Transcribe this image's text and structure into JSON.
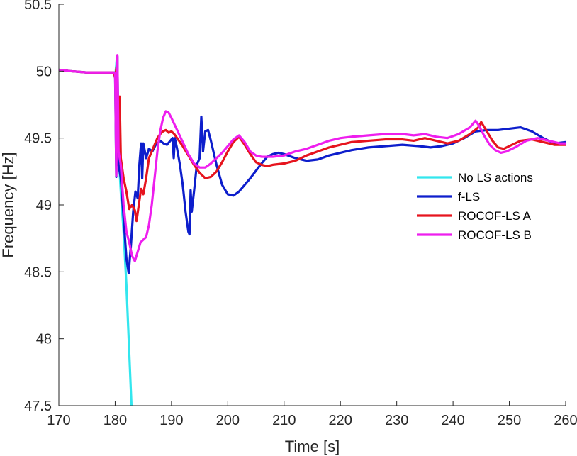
{
  "chart_data": {
    "type": "line",
    "xlabel": "Time [s]",
    "ylabel": "Frequency [Hz]",
    "xlim": [
      170,
      260
    ],
    "ylim": [
      47.5,
      50.5
    ],
    "xticks": [
      170,
      180,
      190,
      200,
      210,
      220,
      230,
      240,
      250,
      260
    ],
    "yticks": [
      47.5,
      48,
      48.5,
      49,
      49.5,
      50,
      50.5
    ],
    "ytick_labels": [
      "47.5",
      "48",
      "48.5",
      "49",
      "49.5",
      "50",
      "50.5"
    ],
    "grid": false,
    "legend_position": "right",
    "series": [
      {
        "name": "No LS actions",
        "color": "#33E6EE",
        "points": [
          [
            170,
            50.01
          ],
          [
            172,
            50.0
          ],
          [
            175,
            49.99
          ],
          [
            178,
            49.99
          ],
          [
            179.8,
            49.99
          ],
          [
            180.0,
            49.95
          ],
          [
            180.3,
            50.1
          ],
          [
            180.6,
            49.4
          ],
          [
            181.0,
            49.1
          ],
          [
            181.5,
            48.8
          ],
          [
            182.0,
            48.4
          ],
          [
            182.5,
            47.9
          ],
          [
            182.9,
            47.5
          ]
        ]
      },
      {
        "name": "f-LS",
        "color": "#0D1ECC",
        "points": [
          [
            170,
            50.01
          ],
          [
            172,
            50.0
          ],
          [
            175,
            49.99
          ],
          [
            178,
            49.99
          ],
          [
            179.8,
            49.99
          ],
          [
            180.0,
            49.95
          ],
          [
            180.2,
            49.21
          ],
          [
            180.4,
            50.11
          ],
          [
            180.6,
            49.3
          ],
          [
            181.0,
            49.2
          ],
          [
            181.5,
            48.9
          ],
          [
            182.0,
            48.6
          ],
          [
            182.4,
            48.49
          ],
          [
            182.8,
            48.7
          ],
          [
            183.2,
            48.95
          ],
          [
            183.6,
            49.1
          ],
          [
            184.0,
            49.05
          ],
          [
            184.3,
            49.3
          ],
          [
            184.6,
            49.46
          ],
          [
            184.8,
            49.2
          ],
          [
            185.0,
            49.46
          ],
          [
            185.5,
            49.35
          ],
          [
            186.0,
            49.42
          ],
          [
            186.6,
            49.4
          ],
          [
            187.2,
            49.45
          ],
          [
            188.0,
            49.48
          ],
          [
            188.6,
            49.46
          ],
          [
            189.2,
            49.45
          ],
          [
            189.8,
            49.48
          ],
          [
            190.2,
            49.5
          ],
          [
            190.4,
            49.35
          ],
          [
            190.6,
            49.5
          ],
          [
            191.0,
            49.42
          ],
          [
            191.5,
            49.3
          ],
          [
            192.0,
            49.15
          ],
          [
            192.5,
            48.95
          ],
          [
            193.0,
            48.8
          ],
          [
            193.2,
            48.78
          ],
          [
            193.4,
            49.11
          ],
          [
            193.6,
            48.95
          ],
          [
            194.0,
            49.1
          ],
          [
            194.5,
            49.3
          ],
          [
            195.0,
            49.35
          ],
          [
            195.3,
            49.66
          ],
          [
            195.6,
            49.4
          ],
          [
            196.0,
            49.55
          ],
          [
            196.5,
            49.56
          ],
          [
            197.0,
            49.48
          ],
          [
            198.0,
            49.3
          ],
          [
            199.0,
            49.15
          ],
          [
            200.0,
            49.08
          ],
          [
            201.0,
            49.07
          ],
          [
            202.0,
            49.1
          ],
          [
            204.0,
            49.2
          ],
          [
            206.0,
            49.31
          ],
          [
            207.0,
            49.36
          ],
          [
            208.0,
            49.38
          ],
          [
            209.0,
            49.39
          ],
          [
            210.0,
            49.38
          ],
          [
            212.0,
            49.35
          ],
          [
            214.0,
            49.33
          ],
          [
            216.0,
            49.34
          ],
          [
            218.0,
            49.37
          ],
          [
            220.0,
            49.39
          ],
          [
            222.0,
            49.41
          ],
          [
            225.0,
            49.43
          ],
          [
            228.0,
            49.44
          ],
          [
            231.0,
            49.45
          ],
          [
            234.0,
            49.44
          ],
          [
            236.0,
            49.43
          ],
          [
            238.0,
            49.44
          ],
          [
            240.0,
            49.46
          ],
          [
            242.0,
            49.5
          ],
          [
            244.0,
            49.55
          ],
          [
            246.0,
            49.56
          ],
          [
            248.0,
            49.56
          ],
          [
            250.0,
            49.57
          ],
          [
            252.0,
            49.58
          ],
          [
            254.0,
            49.55
          ],
          [
            256.0,
            49.5
          ],
          [
            258.0,
            49.46
          ],
          [
            260.0,
            49.47
          ]
        ]
      },
      {
        "name": "ROCOF-LS A",
        "color": "#E6141E",
        "points": [
          [
            170,
            50.01
          ],
          [
            172,
            50.0
          ],
          [
            175,
            49.99
          ],
          [
            178,
            49.99
          ],
          [
            179.8,
            49.99
          ],
          [
            180.0,
            49.95
          ],
          [
            180.3,
            50.05
          ],
          [
            180.6,
            49.6
          ],
          [
            180.8,
            49.81
          ],
          [
            181.0,
            49.35
          ],
          [
            181.5,
            49.2
          ],
          [
            182.0,
            49.1
          ],
          [
            182.5,
            48.97
          ],
          [
            183.0,
            49.0
          ],
          [
            183.5,
            48.96
          ],
          [
            183.8,
            48.88
          ],
          [
            184.2,
            49.0
          ],
          [
            184.6,
            49.12
          ],
          [
            185.0,
            49.08
          ],
          [
            185.5,
            49.2
          ],
          [
            186.0,
            49.35
          ],
          [
            186.5,
            49.4
          ],
          [
            187.0,
            49.45
          ],
          [
            187.5,
            49.5
          ],
          [
            188.0,
            49.53
          ],
          [
            188.5,
            49.55
          ],
          [
            189.0,
            49.56
          ],
          [
            189.5,
            49.54
          ],
          [
            190.0,
            49.55
          ],
          [
            190.5,
            49.53
          ],
          [
            191.0,
            49.5
          ],
          [
            192.0,
            49.44
          ],
          [
            193.0,
            49.37
          ],
          [
            194.0,
            49.3
          ],
          [
            195.0,
            49.24
          ],
          [
            196.0,
            49.2
          ],
          [
            197.0,
            49.21
          ],
          [
            198.0,
            49.25
          ],
          [
            199.0,
            49.32
          ],
          [
            200.0,
            49.4
          ],
          [
            201.0,
            49.47
          ],
          [
            202.0,
            49.51
          ],
          [
            203.0,
            49.45
          ],
          [
            204.0,
            49.38
          ],
          [
            205.0,
            49.32
          ],
          [
            206.0,
            49.3
          ],
          [
            207.0,
            49.29
          ],
          [
            208.0,
            49.3
          ],
          [
            210.0,
            49.31
          ],
          [
            212.0,
            49.33
          ],
          [
            214.0,
            49.37
          ],
          [
            216.0,
            49.4
          ],
          [
            218.0,
            49.43
          ],
          [
            220.0,
            49.45
          ],
          [
            222.0,
            49.47
          ],
          [
            225.0,
            49.48
          ],
          [
            228.0,
            49.49
          ],
          [
            231.0,
            49.49
          ],
          [
            233.0,
            49.48
          ],
          [
            235.0,
            49.5
          ],
          [
            237.0,
            49.48
          ],
          [
            239.0,
            49.46
          ],
          [
            241.0,
            49.48
          ],
          [
            243.0,
            49.53
          ],
          [
            244.5,
            49.58
          ],
          [
            245.0,
            49.62
          ],
          [
            246.0,
            49.55
          ],
          [
            247.0,
            49.48
          ],
          [
            248.0,
            49.43
          ],
          [
            249.0,
            49.42
          ],
          [
            250.0,
            49.44
          ],
          [
            252.0,
            49.48
          ],
          [
            254.0,
            49.49
          ],
          [
            256.0,
            49.47
          ],
          [
            258.0,
            49.45
          ],
          [
            260.0,
            49.45
          ]
        ]
      },
      {
        "name": "ROCOF-LS B",
        "color": "#EE1EEE",
        "points": [
          [
            170,
            50.01
          ],
          [
            172,
            50.0
          ],
          [
            175,
            49.99
          ],
          [
            178,
            49.99
          ],
          [
            179.8,
            49.99
          ],
          [
            180.0,
            49.98
          ],
          [
            180.2,
            49.22
          ],
          [
            180.4,
            50.12
          ],
          [
            180.6,
            49.4
          ],
          [
            181.0,
            49.3
          ],
          [
            181.5,
            49.0
          ],
          [
            182.0,
            48.8
          ],
          [
            182.5,
            48.72
          ],
          [
            183.0,
            48.62
          ],
          [
            183.5,
            48.58
          ],
          [
            184.0,
            48.65
          ],
          [
            184.5,
            48.72
          ],
          [
            185.0,
            48.74
          ],
          [
            185.5,
            48.76
          ],
          [
            186.0,
            48.85
          ],
          [
            186.5,
            49.0
          ],
          [
            187.0,
            49.2
          ],
          [
            187.5,
            49.4
          ],
          [
            188.0,
            49.55
          ],
          [
            188.5,
            49.65
          ],
          [
            189.0,
            49.7
          ],
          [
            189.5,
            49.69
          ],
          [
            190.0,
            49.65
          ],
          [
            191.0,
            49.56
          ],
          [
            192.0,
            49.47
          ],
          [
            193.0,
            49.38
          ],
          [
            194.0,
            49.31
          ],
          [
            195.0,
            49.28
          ],
          [
            196.0,
            49.28
          ],
          [
            197.0,
            49.31
          ],
          [
            198.0,
            49.35
          ],
          [
            199.0,
            49.39
          ],
          [
            200.0,
            49.44
          ],
          [
            201.0,
            49.49
          ],
          [
            202.0,
            49.52
          ],
          [
            203.0,
            49.47
          ],
          [
            204.0,
            49.4
          ],
          [
            205.0,
            49.37
          ],
          [
            206.0,
            49.36
          ],
          [
            208.0,
            49.36
          ],
          [
            210.0,
            49.37
          ],
          [
            212.0,
            49.4
          ],
          [
            214.0,
            49.42
          ],
          [
            216.0,
            49.45
          ],
          [
            218.0,
            49.48
          ],
          [
            220.0,
            49.5
          ],
          [
            222.0,
            49.51
          ],
          [
            225.0,
            49.52
          ],
          [
            228.0,
            49.53
          ],
          [
            231.0,
            49.53
          ],
          [
            233.0,
            49.52
          ],
          [
            235.0,
            49.53
          ],
          [
            237.0,
            49.51
          ],
          [
            239.0,
            49.5
          ],
          [
            241.0,
            49.53
          ],
          [
            243.0,
            49.58
          ],
          [
            244.0,
            49.63
          ],
          [
            244.5,
            49.6
          ],
          [
            245.5,
            49.52
          ],
          [
            246.5,
            49.45
          ],
          [
            247.5,
            49.41
          ],
          [
            248.5,
            49.39
          ],
          [
            249.5,
            49.4
          ],
          [
            251.0,
            49.43
          ],
          [
            253.0,
            49.48
          ],
          [
            255.0,
            49.5
          ],
          [
            257.0,
            49.48
          ],
          [
            259.0,
            49.46
          ],
          [
            260.0,
            49.46
          ]
        ]
      }
    ]
  }
}
